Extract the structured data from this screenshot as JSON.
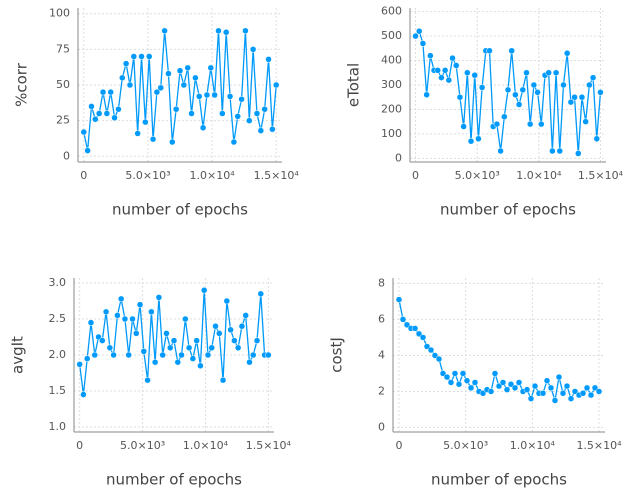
{
  "chart_data": [
    {
      "type": "line",
      "xlabel": "number of epochs",
      "ylabel": "%corr",
      "x": [
        0,
        300,
        600,
        900,
        1200,
        1500,
        1800,
        2100,
        2400,
        2700,
        3000,
        3300,
        3600,
        3900,
        4200,
        4500,
        4800,
        5100,
        5400,
        5700,
        6000,
        6300,
        6600,
        6900,
        7200,
        7500,
        7800,
        8100,
        8400,
        8700,
        9000,
        9300,
        9600,
        9900,
        10200,
        10500,
        10800,
        11100,
        11400,
        11700,
        12000,
        12300,
        12600,
        12900,
        13200,
        13500,
        13800,
        14100,
        14400,
        14700,
        15000
      ],
      "series": [
        {
          "color": "#009afa",
          "values": [
            17,
            4,
            35,
            26,
            30,
            45,
            30,
            45,
            27,
            33,
            55,
            65,
            50,
            70,
            16,
            70,
            24,
            70,
            12,
            45,
            48,
            88,
            58,
            10,
            33,
            60,
            50,
            62,
            30,
            55,
            42,
            20,
            43,
            62,
            43,
            88,
            30,
            87,
            42,
            10,
            28,
            40,
            88,
            25,
            75,
            30,
            18,
            33,
            68,
            19,
            50
          ]
        }
      ],
      "xlim": [
        -450,
        15450
      ],
      "xticks": [
        0,
        {
          "value": 5000,
          "label": "5.0×10³"
        },
        {
          "value": 10000,
          "label": "1.0×10⁴"
        },
        {
          "value": 15000,
          "label": "1.5×10⁴"
        }
      ],
      "ylim": [
        -4,
        104
      ],
      "yticks": [
        0,
        25,
        50,
        75,
        100
      ],
      "grid": true
    },
    {
      "type": "line",
      "xlabel": "number of epochs",
      "ylabel": "eTotal",
      "x": [
        0,
        300,
        600,
        900,
        1200,
        1500,
        1800,
        2100,
        2400,
        2700,
        3000,
        3300,
        3600,
        3900,
        4200,
        4500,
        4800,
        5100,
        5400,
        5700,
        6000,
        6300,
        6600,
        6900,
        7200,
        7500,
        7800,
        8100,
        8400,
        8700,
        9000,
        9300,
        9600,
        9900,
        10200,
        10500,
        10800,
        11100,
        11400,
        11700,
        12000,
        12300,
        12600,
        12900,
        13200,
        13500,
        13800,
        14100,
        14400,
        14700,
        15000
      ],
      "series": [
        {
          "color": "#009afa",
          "values": [
            500,
            520,
            470,
            260,
            420,
            360,
            360,
            330,
            360,
            320,
            410,
            380,
            250,
            130,
            350,
            70,
            340,
            80,
            290,
            440,
            440,
            130,
            140,
            30,
            170,
            280,
            440,
            260,
            220,
            280,
            350,
            140,
            300,
            270,
            140,
            340,
            350,
            30,
            350,
            30,
            300,
            430,
            230,
            250,
            20,
            250,
            150,
            300,
            330,
            80,
            270
          ]
        }
      ],
      "xlim": [
        -450,
        15450
      ],
      "xticks": [
        0,
        {
          "value": 5000,
          "label": "5.0×10³"
        },
        {
          "value": 10000,
          "label": "1.0×10⁴"
        },
        {
          "value": 15000,
          "label": "1.5×10⁴"
        }
      ],
      "ylim": [
        -15,
        615
      ],
      "yticks": [
        0,
        100,
        200,
        300,
        400,
        500,
        600
      ],
      "grid": true
    },
    {
      "type": "line",
      "xlabel": "number of epochs",
      "ylabel": "avgIt",
      "x": [
        0,
        300,
        600,
        900,
        1200,
        1500,
        1800,
        2100,
        2400,
        2700,
        3000,
        3300,
        3600,
        3900,
        4200,
        4500,
        4800,
        5100,
        5400,
        5700,
        6000,
        6300,
        6600,
        6900,
        7200,
        7500,
        7800,
        8100,
        8400,
        8700,
        9000,
        9300,
        9600,
        9900,
        10200,
        10500,
        10800,
        11100,
        11400,
        11700,
        12000,
        12300,
        12600,
        12900,
        13200,
        13500,
        13800,
        14100,
        14400,
        14700,
        15000
      ],
      "series": [
        {
          "color": "#009afa",
          "values": [
            1.87,
            1.45,
            1.95,
            2.45,
            2.0,
            2.25,
            2.2,
            2.6,
            2.1,
            2.0,
            2.55,
            2.78,
            2.5,
            2.0,
            2.5,
            2.3,
            2.7,
            2.05,
            1.65,
            2.6,
            1.9,
            2.8,
            2.0,
            2.3,
            2.1,
            2.2,
            1.9,
            2.0,
            2.5,
            2.1,
            1.95,
            2.2,
            1.85,
            2.9,
            2.0,
            2.1,
            2.4,
            2.3,
            1.65,
            2.75,
            2.35,
            2.2,
            2.1,
            2.4,
            2.55,
            1.9,
            2.0,
            2.2,
            2.85,
            2.0,
            2.0
          ]
        }
      ],
      "xlim": [
        -450,
        15450
      ],
      "xticks": [
        0,
        {
          "value": 5000,
          "label": "5.0×10³"
        },
        {
          "value": 10000,
          "label": "1.0×10⁴"
        },
        {
          "value": 15000,
          "label": "1.5×10⁴"
        }
      ],
      "ylim": [
        0.93,
        3.07
      ],
      "yticks": [
        {
          "value": 1,
          "label": "1.0"
        },
        1.5,
        {
          "value": 2,
          "label": "2.0"
        },
        2.5,
        {
          "value": 3,
          "label": "3.0"
        }
      ],
      "grid": true
    },
    {
      "type": "line",
      "xlabel": "number of epochs",
      "ylabel": "costJ",
      "x": [
        0,
        300,
        600,
        900,
        1200,
        1500,
        1800,
        2100,
        2400,
        2700,
        3000,
        3300,
        3600,
        3900,
        4200,
        4500,
        4800,
        5100,
        5400,
        5700,
        6000,
        6300,
        6600,
        6900,
        7200,
        7500,
        7800,
        8100,
        8400,
        8700,
        9000,
        9300,
        9600,
        9900,
        10200,
        10500,
        10800,
        11100,
        11400,
        11700,
        12000,
        12300,
        12600,
        12900,
        13200,
        13500,
        13800,
        14100,
        14400,
        14700,
        15000
      ],
      "series": [
        {
          "color": "#009afa",
          "values": [
            7.1,
            6.0,
            5.7,
            5.5,
            5.5,
            5.2,
            5.0,
            4.5,
            4.3,
            4.0,
            3.8,
            3.0,
            2.8,
            2.5,
            3.0,
            2.4,
            3.0,
            2.6,
            2.2,
            2.5,
            2.0,
            1.9,
            2.1,
            2.0,
            3.0,
            2.3,
            2.5,
            2.1,
            2.4,
            2.2,
            2.5,
            2.0,
            2.1,
            1.6,
            2.3,
            1.9,
            1.9,
            2.6,
            2.2,
            1.5,
            2.8,
            1.9,
            2.3,
            1.6,
            2.0,
            1.8,
            1.9,
            2.2,
            1.8,
            2.2,
            2.0
          ]
        }
      ],
      "xlim": [
        -450,
        15450
      ],
      "xticks": [
        0,
        {
          "value": 5000,
          "label": "5.0×10³"
        },
        {
          "value": 10000,
          "label": "1.0×10⁴"
        },
        {
          "value": 15000,
          "label": "1.5×10⁴"
        }
      ],
      "ylim": [
        -0.25,
        8.3
      ],
      "yticks": [
        0,
        2,
        4,
        6,
        8
      ],
      "grid": true
    }
  ]
}
